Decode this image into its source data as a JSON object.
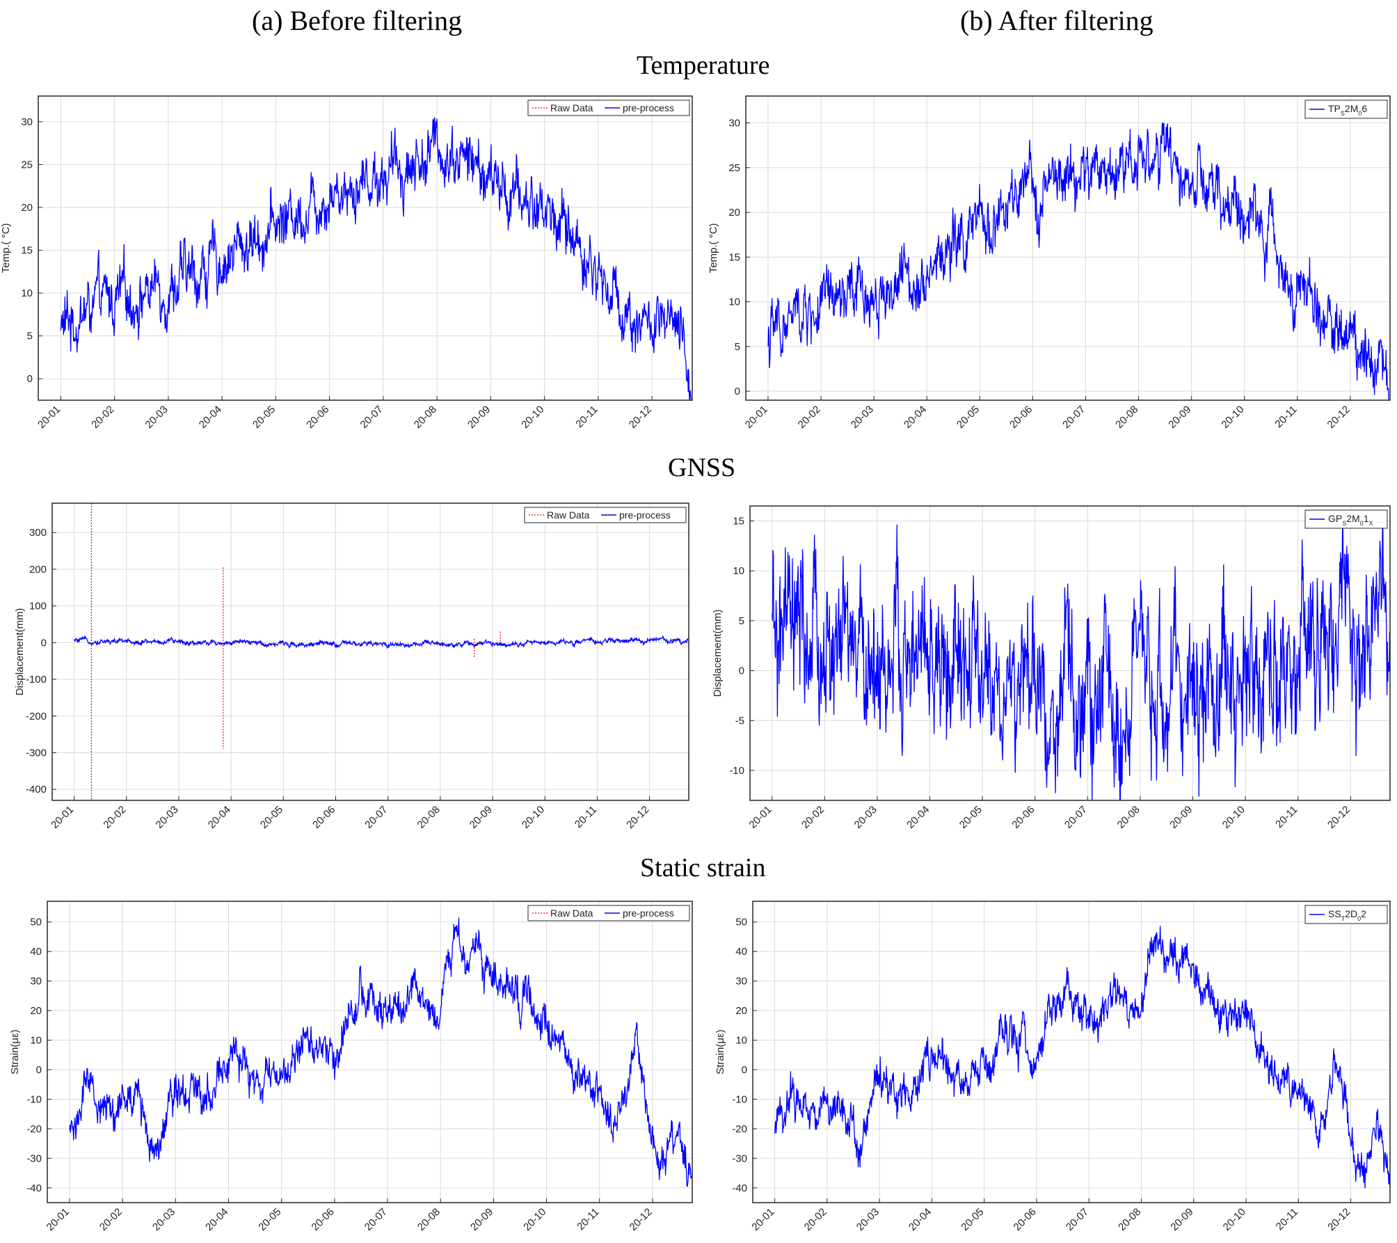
{
  "figure": {
    "col_titles": [
      "(a) Before filtering",
      "(b) After filtering"
    ],
    "section_titles": [
      "Temperature",
      "GNSS",
      "Static strain"
    ]
  },
  "colors": {
    "raw": "#ff0000",
    "processed": "#0000ff",
    "grid": "#d9d9d9",
    "axis": "#262626"
  },
  "chart_data": [
    {
      "id": "temp-before",
      "type": "line",
      "grid": true,
      "legend_position": "top-right",
      "ylabel": "Temp.( °C)",
      "ylim": [
        -2.5,
        33
      ],
      "yticks": [
        0,
        5,
        10,
        15,
        20,
        25,
        30
      ],
      "xtick_labels": [
        "20-01",
        "20-02",
        "20-03",
        "20-04",
        "20-05",
        "20-06",
        "20-07",
        "20-08",
        "20-09",
        "20-10",
        "20-11",
        "20-12"
      ],
      "legend": [
        "Raw Data",
        "pre-process"
      ],
      "series": [
        {
          "name": "pre-process",
          "style": "solid",
          "x": [
            0,
            0.5,
            1,
            1.5,
            2,
            2.5,
            3,
            3.5,
            4,
            4.5,
            5,
            5.5,
            6,
            6.5,
            7,
            7.5,
            8,
            8.5,
            9,
            9.5,
            10,
            10.5,
            11,
            11.5,
            11.75
          ],
          "y": [
            6,
            8,
            9,
            10,
            11,
            12,
            14,
            16,
            18,
            20,
            22,
            23,
            24,
            25,
            27,
            26,
            23,
            21,
            20,
            17,
            12,
            8,
            6,
            5,
            -2
          ],
          "noise_amplitude": 4
        }
      ]
    },
    {
      "id": "temp-after",
      "type": "line",
      "grid": true,
      "legend_position": "top-right",
      "ylabel": "Temp.( °C)",
      "ylim": [
        -1,
        33
      ],
      "yticks": [
        0,
        5,
        10,
        15,
        20,
        25,
        30
      ],
      "xtick_labels": [
        "20-01",
        "20-02",
        "20-03",
        "20-04",
        "20-05",
        "20-06",
        "20-07",
        "20-08",
        "20-09",
        "20-10",
        "20-11",
        "20-12"
      ],
      "legend_html": "TP<tspan baseline-shift='sub' font-size='9'>S</tspan>2M<tspan baseline-shift='sub' font-size='9'>0</tspan>6",
      "series": [
        {
          "name": "TPS2M06",
          "style": "solid",
          "x": [
            0,
            0.5,
            1,
            1.5,
            2,
            2.5,
            3,
            3.5,
            4,
            4.5,
            5,
            5.5,
            6,
            6.5,
            7,
            7.5,
            8,
            8.5,
            9,
            9.5,
            10,
            10.5,
            11,
            11.5,
            11.75
          ],
          "y": [
            6,
            8,
            9,
            10,
            11,
            12,
            14,
            16,
            18,
            20,
            22,
            23,
            24,
            25,
            27,
            26,
            23,
            21,
            20,
            17,
            12,
            8,
            6,
            5,
            -1
          ],
          "noise_amplitude": 4
        }
      ]
    },
    {
      "id": "gnss-before",
      "type": "line",
      "grid": true,
      "legend_position": "top-right",
      "ylabel": "Displacement(mm)",
      "ylim": [
        -430,
        380
      ],
      "yticks": [
        -400,
        -300,
        -200,
        -100,
        0,
        100,
        200,
        300
      ],
      "xtick_labels": [
        "20-01",
        "20-02",
        "20-03",
        "20-04",
        "20-05",
        "20-06",
        "20-07",
        "20-08",
        "20-09",
        "20-10",
        "20-11",
        "20-12"
      ],
      "legend": [
        "Raw Data",
        "pre-process"
      ],
      "raw_spikes": [
        {
          "x": 0.33,
          "y_min": -430,
          "y_max": 380
        },
        {
          "x": 2.85,
          "y_min": -290,
          "y_max": 205
        },
        {
          "x": 7.65,
          "y_min": -40,
          "y_max": 10
        },
        {
          "x": 8.15,
          "y_min": -5,
          "y_max": 30
        }
      ],
      "series": [
        {
          "name": "pre-process",
          "style": "solid",
          "x": [
            0,
            1,
            2,
            3,
            4,
            5,
            6,
            7,
            8,
            9,
            10,
            11,
            11.75
          ],
          "y": [
            5,
            3,
            2,
            0,
            -3,
            -5,
            -5,
            -4,
            -3,
            0,
            3,
            6,
            7
          ],
          "noise_amplitude": 8
        }
      ]
    },
    {
      "id": "gnss-after",
      "type": "line",
      "grid": true,
      "legend_position": "top-right",
      "ylabel": "Displacement(mm)",
      "ylim": [
        -13,
        16.5
      ],
      "yticks": [
        -10,
        -5,
        0,
        5,
        10,
        15
      ],
      "xtick_labels": [
        "20-01",
        "20-02",
        "20-03",
        "20-04",
        "20-05",
        "20-06",
        "20-07",
        "20-08",
        "20-09",
        "20-10",
        "20-11",
        "20-12"
      ],
      "legend_html": "GP<tspan baseline-shift='sub' font-size='9'>S</tspan>2M<tspan baseline-shift='sub' font-size='9'>0</tspan>1<tspan baseline-shift='sub' font-size='9'>X</tspan>",
      "series": [
        {
          "name": "GPS2M01X",
          "style": "solid",
          "x": [
            0,
            1,
            2,
            3,
            4,
            5,
            6,
            7,
            8,
            9,
            10,
            11,
            11.75
          ],
          "y": [
            2.5,
            1.5,
            1,
            0,
            -1.5,
            -3,
            -3,
            -3,
            -2,
            0,
            1.5,
            2.5,
            3
          ],
          "noise_amplitude": 9
        }
      ]
    },
    {
      "id": "strain-before",
      "type": "line",
      "grid": true,
      "legend_position": "top-right",
      "ylabel": "Strain(με)",
      "ylim": [
        -45,
        57
      ],
      "yticks": [
        -40,
        -30,
        -20,
        -10,
        0,
        10,
        20,
        30,
        40,
        50
      ],
      "xtick_labels": [
        "20-01",
        "20-02",
        "20-03",
        "20-04",
        "20-05",
        "20-06",
        "20-07",
        "20-08",
        "20-09",
        "20-10",
        "20-11",
        "20-12"
      ],
      "legend": [
        "Raw Data",
        "pre-process"
      ],
      "series": [
        {
          "name": "pre-process",
          "style": "solid",
          "x": [
            0,
            0.3,
            0.8,
            1.3,
            1.6,
            2,
            2.5,
            3,
            3.5,
            4,
            4.5,
            5,
            5.5,
            6,
            6.5,
            7,
            7.3,
            7.6,
            8,
            8.5,
            9,
            9.5,
            10,
            10.4,
            10.7,
            11,
            11.3,
            11.5,
            11.75
          ],
          "y": [
            -22,
            -8,
            -14,
            -10,
            -26,
            -3,
            -8,
            5,
            -5,
            -2,
            10,
            6,
            28,
            15,
            25,
            22,
            45,
            40,
            33,
            22,
            18,
            0,
            -8,
            -20,
            5,
            -25,
            -30,
            -18,
            -40
          ],
          "noise_amplitude": 8
        }
      ]
    },
    {
      "id": "strain-after",
      "type": "line",
      "grid": true,
      "legend_position": "top-right",
      "ylabel": "Strain(με)",
      "ylim": [
        -45,
        57
      ],
      "yticks": [
        -40,
        -30,
        -20,
        -10,
        0,
        10,
        20,
        30,
        40,
        50
      ],
      "xtick_labels": [
        "20-01",
        "20-02",
        "20-03",
        "20-04",
        "20-05",
        "20-06",
        "20-07",
        "20-08",
        "20-09",
        "20-10",
        "20-11",
        "20-12"
      ],
      "legend_html": "SS<tspan baseline-shift='sub' font-size='9'>T</tspan>2D<tspan baseline-shift='sub' font-size='9'>0</tspan>2",
      "series": [
        {
          "name": "SST2D02",
          "style": "solid",
          "x": [
            0,
            0.3,
            0.8,
            1.3,
            1.6,
            2,
            2.5,
            3,
            3.5,
            4,
            4.5,
            5,
            5.5,
            6,
            6.5,
            7,
            7.3,
            7.6,
            8,
            8.5,
            9,
            9.5,
            10,
            10.4,
            10.7,
            11,
            11.3,
            11.5,
            11.75
          ],
          "y": [
            -22,
            -8,
            -14,
            -10,
            -26,
            -3,
            -8,
            5,
            -5,
            -2,
            10,
            6,
            28,
            15,
            25,
            22,
            45,
            40,
            33,
            22,
            18,
            0,
            -8,
            -20,
            5,
            -25,
            -30,
            -18,
            -38
          ],
          "noise_amplitude": 8
        }
      ]
    }
  ]
}
